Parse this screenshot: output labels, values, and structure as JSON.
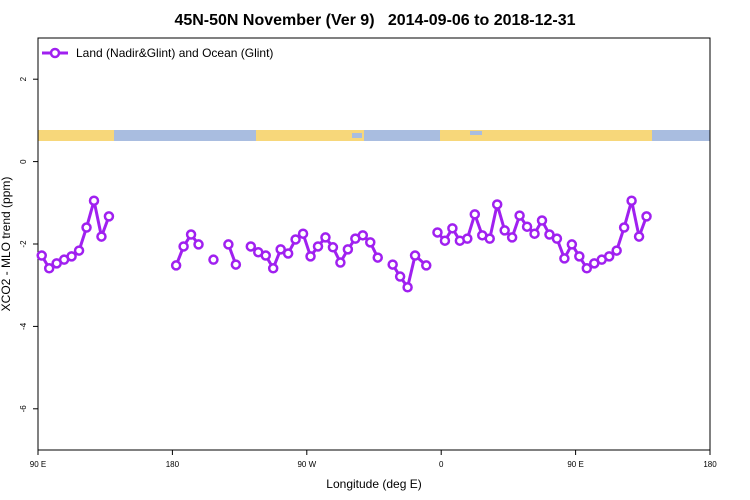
{
  "chart_data": {
    "type": "line",
    "title": "45N-50N November (Ver 9)   2014-09-06 to 2018-12-31",
    "x_label": "Longitude (deg E)",
    "y_label": "XCO2 - MLO trend (ppm)",
    "xlim": [
      90,
      540
    ],
    "xticks": [
      {
        "value": 90,
        "label": "90 E"
      },
      180,
      {
        "value": 270,
        "label": "90 W"
      },
      {
        "value": 360,
        "label": "0"
      },
      {
        "value": 450,
        "label": "90 E"
      },
      {
        "value": 540,
        "label": "180"
      }
    ],
    "ylim": [
      -7,
      3
    ],
    "yticks": [
      -6,
      -4,
      -2,
      0,
      2
    ],
    "legend": "top-left",
    "series": [
      {
        "name": "Land (Nadir&Glint) and Ocean (Glint)",
        "color": "#a020f0",
        "x": [
          92.5,
          97.5,
          102.5,
          107.5,
          112.5,
          117.5,
          122.5,
          127.5,
          132.5,
          137.5,
          142.5,
          182.5,
          187.5,
          192.5,
          197.5,
          202.5,
          207.5,
          212.5,
          217.5,
          222.5,
          227.5,
          232.5,
          237.5,
          242.5,
          247.5,
          252.5,
          257.5,
          262.5,
          267.5,
          272.5,
          277.5,
          282.5,
          287.5,
          292.5,
          297.5,
          302.5,
          307.5,
          312.5,
          317.5,
          322.5,
          327.5,
          332.5,
          337.5,
          342.5,
          350,
          355,
          357.5,
          362.5,
          367.5,
          372.5,
          377.5,
          382.5,
          387.5,
          392.5,
          397.5,
          402.5,
          407.5,
          412.5,
          417.5,
          422.5,
          427.5,
          432.5,
          437.5,
          442.5,
          447.5,
          452.5,
          457.5,
          462.5,
          467.5,
          472.5,
          477.5,
          482.5,
          487.5,
          492.5,
          497.5
        ],
        "values": [
          -2.28,
          -2.59,
          -2.47,
          -2.38,
          -2.3,
          -2.16,
          -1.6,
          -0.95,
          -1.82,
          -1.33,
          null,
          -2.52,
          -2.06,
          -1.77,
          -2.01,
          null,
          -2.38,
          null,
          -2.01,
          -2.5,
          null,
          -2.06,
          -2.2,
          -2.28,
          -2.59,
          -2.13,
          -2.23,
          -1.89,
          -1.75,
          -2.3,
          -2.06,
          -1.84,
          -2.08,
          -2.45,
          -2.13,
          -1.87,
          -1.79,
          -1.96,
          -2.33,
          null,
          -2.5,
          -2.79,
          -3.05,
          -2.28,
          -2.52,
          null,
          -1.72,
          -1.92,
          -1.62,
          -1.92,
          -1.87,
          -1.28,
          -1.79,
          -1.87,
          -1.04,
          -1.67,
          -1.84,
          -1.31,
          -1.58,
          -1.75,
          -1.43,
          -1.77,
          -1.87,
          -2.35,
          -2.01,
          -2.3,
          -2.59,
          -2.47,
          -2.38,
          -2.3,
          -2.16,
          -1.6,
          -0.95,
          -1.82,
          -1.33
        ]
      }
    ]
  }
}
